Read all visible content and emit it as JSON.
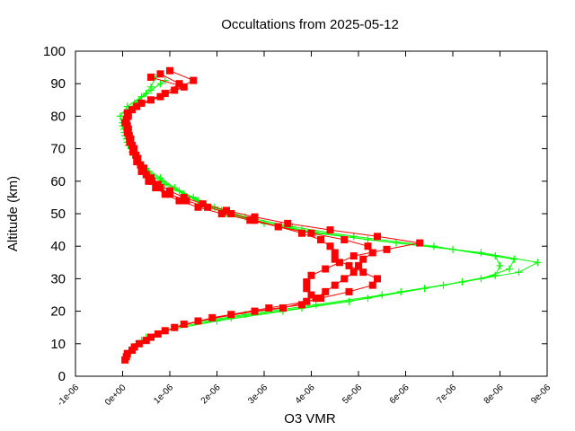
{
  "chart_data": {
    "type": "scatter",
    "title": "Occultations from 2025-05-12",
    "xlabel": "O3 VMR",
    "ylabel": "Altitude (km)",
    "xlim": [
      -1e-06,
      9e-06
    ],
    "ylim": [
      0,
      100
    ],
    "x_ticks": [
      "-1e-06",
      "0e+00",
      "1e-06",
      "2e-06",
      "3e-06",
      "4e-06",
      "5e-06",
      "6e-06",
      "7e-06",
      "8e-06",
      "9e-06"
    ],
    "x_tick_values": [
      -1e-06,
      0,
      1e-06,
      2e-06,
      3e-06,
      4e-06,
      5e-06,
      6e-06,
      7e-06,
      8e-06,
      9e-06
    ],
    "y_ticks": [
      "0",
      "10",
      "20",
      "30",
      "40",
      "50",
      "60",
      "70",
      "80",
      "90",
      "100"
    ],
    "y_tick_values": [
      0,
      10,
      20,
      30,
      40,
      50,
      60,
      70,
      80,
      90,
      100
    ],
    "colors": {
      "series_green": "#00ff00",
      "series_red": "#ff0000",
      "axes": "#000000"
    },
    "series": [
      {
        "name": "green",
        "marker": "plus",
        "color": "#00ff00",
        "profiles": [
          {
            "altitude": [
              6,
              10,
              14,
              17,
              20,
              23,
              26,
              29,
              32,
              35,
              38,
              41,
              44,
              47,
              50,
              53,
              56,
              59,
              62,
              65,
              68,
              71,
              74,
              77,
              80,
              83,
              86,
              89,
              92
            ],
            "o3": [
              1e-07,
              3e-07,
              9e-07,
              2e-06,
              3.4e-06,
              4.8e-06,
              5.9e-06,
              7.2e-06,
              8.4e-06,
              8.8e-06,
              7.6e-06,
              5.8e-06,
              4.1e-06,
              3e-06,
              2.2e-06,
              1.7e-06,
              1.3e-06,
              9e-07,
              6e-07,
              4e-07,
              2.5e-07,
              1.2e-07,
              5e-08,
              0.0,
              -5e-08,
              1e-07,
              4e-07,
              6e-07,
              7e-07
            ]
          },
          {
            "altitude": [
              7,
              11,
              15,
              18,
              21,
              24,
              27,
              30,
              33,
              36,
              39,
              42,
              45,
              48,
              51,
              54,
              57,
              60,
              63,
              66,
              69,
              72,
              75,
              78,
              81,
              84,
              87,
              90
            ],
            "o3": [
              1.5e-07,
              4e-07,
              1.1e-06,
              2.3e-06,
              3.8e-06,
              5.2e-06,
              6.4e-06,
              7.6e-06,
              8.2e-06,
              8.3e-06,
              7e-06,
              5.2e-06,
              3.8e-06,
              2.8e-06,
              2.1e-06,
              1.6e-06,
              1.2e-06,
              8.5e-07,
              5.5e-07,
              3.5e-07,
              2e-07,
              1e-07,
              4e-08,
              0.0,
              5e-08,
              2.5e-07,
              5e-07,
              8e-07
            ]
          },
          {
            "altitude": [
              8,
              12,
              16,
              19,
              22,
              25,
              28,
              31,
              34,
              37,
              40,
              43,
              46,
              49,
              52,
              55,
              58,
              61,
              64,
              67,
              70,
              73,
              76,
              79,
              82,
              85,
              88,
              91
            ],
            "o3": [
              2e-07,
              5e-07,
              1.3e-06,
              2.6e-06,
              4.1e-06,
              5.5e-06,
              6.8e-06,
              7.9e-06,
              8e-06,
              7.9e-06,
              6.6e-06,
              4.9e-06,
              3.6e-06,
              2.6e-06,
              1.95e-06,
              1.5e-06,
              1.1e-06,
              8e-07,
              5e-07,
              3e-07,
              1.8e-07,
              8e-08,
              3e-08,
              2e-08,
              1.5e-07,
              3.5e-07,
              6e-07,
              9e-07
            ]
          }
        ]
      },
      {
        "name": "red",
        "marker": "square",
        "color": "#ff0000",
        "profiles": [
          {
            "altitude": [
              5,
              8,
              11,
              14,
              17,
              20,
              22,
              24,
              26,
              28,
              30,
              32,
              34,
              36,
              38,
              40,
              42,
              44,
              46,
              48,
              50,
              52,
              54,
              56,
              58,
              60,
              63,
              66,
              69,
              72,
              75,
              78,
              81,
              84,
              87,
              90,
              93
            ],
            "o3": [
              5e-08,
              2e-07,
              5e-07,
              9e-07,
              1.6e-06,
              2.8e-06,
              3.8e-06,
              4.1e-06,
              4.3e-06,
              4.5e-06,
              4.7e-06,
              4.9e-06,
              5e-06,
              5.1e-06,
              5.3e-06,
              5.2e-06,
              4.7e-06,
              4e-06,
              3.3e-06,
              2.7e-06,
              2.1e-06,
              1.6e-06,
              1.2e-06,
              9e-07,
              7e-07,
              5.5e-07,
              4e-07,
              3e-07,
              2.2e-07,
              1.5e-07,
              1e-07,
              5e-08,
              1e-07,
              4e-07,
              9e-07,
              1.2e-06,
              8e-07
            ]
          },
          {
            "altitude": [
              6,
              9,
              12,
              15,
              18,
              21,
              23,
              25,
              27,
              29,
              31,
              33,
              35,
              37,
              39,
              41,
              43,
              45,
              47,
              49,
              51,
              53,
              55,
              57,
              59,
              61,
              64,
              67,
              70,
              73,
              76,
              79,
              82,
              85,
              88,
              91,
              94
            ],
            "o3": [
              8e-08,
              2.5e-07,
              6e-07,
              1.1e-06,
              1.9e-06,
              3.1e-06,
              3.9e-06,
              4e-06,
              3.9e-06,
              3.9e-06,
              4e-06,
              4.3e-06,
              4.6e-06,
              4.9e-06,
              5.6e-06,
              6.3e-06,
              5.4e-06,
              4.4e-06,
              3.5e-06,
              2.8e-06,
              2.2e-06,
              1.7e-06,
              1.3e-06,
              1e-06,
              7.5e-07,
              6e-07,
              4.5e-07,
              3.2e-07,
              2.4e-07,
              1.7e-07,
              1.2e-07,
              8e-08,
              2e-07,
              6e-07,
              1.1e-06,
              1.5e-06,
              1e-06
            ]
          },
          {
            "altitude": [
              7,
              10,
              13,
              16,
              19,
              21,
              24,
              26,
              28,
              30,
              32,
              34,
              36,
              38,
              40,
              42,
              44,
              46,
              48,
              50,
              52,
              54,
              56,
              58,
              60,
              62,
              65,
              68,
              71,
              74,
              77,
              80,
              83,
              86,
              89,
              92
            ],
            "o3": [
              1e-07,
              3.5e-07,
              7.5e-07,
              1.3e-06,
              2.3e-06,
              3.4e-06,
              4.2e-06,
              4.8e-06,
              5.3e-06,
              5.4e-06,
              5.1e-06,
              4.8e-06,
              4.5e-06,
              4.5e-06,
              4.4e-06,
              4.2e-06,
              3.8e-06,
              3.3e-06,
              2.8e-06,
              2.3e-06,
              1.8e-06,
              1.35e-06,
              1e-06,
              8e-07,
              6.2e-07,
              5e-07,
              3.8e-07,
              2.8e-07,
              2e-07,
              1.4e-07,
              1e-07,
              1.2e-07,
              3e-07,
              8e-07,
              1.3e-06,
              6e-07
            ]
          }
        ]
      }
    ]
  }
}
